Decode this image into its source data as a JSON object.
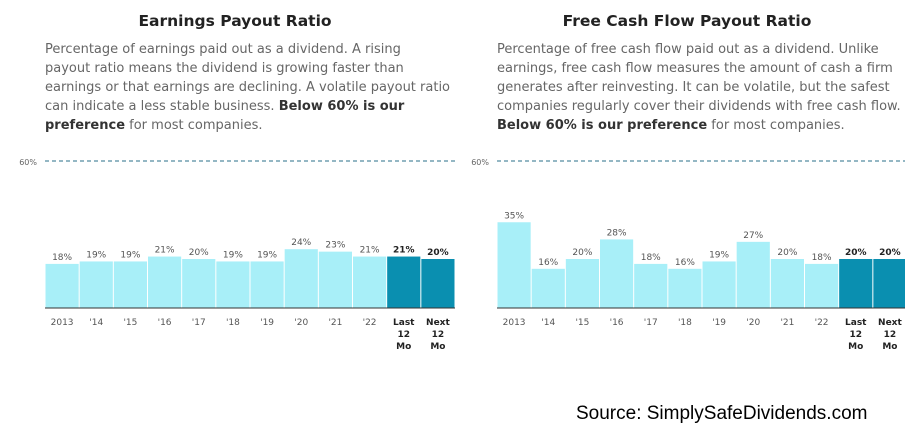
{
  "chart_data": [
    {
      "type": "bar",
      "title": "Earnings Payout Ratio",
      "description": {
        "text": "Percentage of earnings paid out as a dividend. A rising payout ratio means the dividend is growing faster than earnings or that earnings are declining. A volatile payout ratio can indicate a less stable business.",
        "bold": "Below 60% is our preference",
        "tail": "for most companies."
      },
      "categories": [
        "2013",
        "'14",
        "'15",
        "'16",
        "'17",
        "'18",
        "'19",
        "'20",
        "'21",
        "'22",
        "Last 12 Mo",
        "Next 12 Mo"
      ],
      "values": [
        18,
        19,
        19,
        21,
        20,
        19,
        19,
        24,
        23,
        21,
        21,
        20
      ],
      "value_labels": [
        "18%",
        "19%",
        "19%",
        "21%",
        "20%",
        "19%",
        "19%",
        "24%",
        "23%",
        "21%",
        "21%",
        "20%"
      ],
      "highlighted": [
        false,
        false,
        false,
        false,
        false,
        false,
        false,
        false,
        false,
        false,
        true,
        true
      ],
      "reference_line": {
        "value": 60,
        "label": "60%"
      },
      "ylim": [
        0,
        60
      ],
      "grid": false,
      "colors": {
        "bar": "#a8eff8",
        "highlight": "#0a8fb0",
        "reference": "#2a6f8a"
      }
    },
    {
      "type": "bar",
      "title": "Free Cash Flow Payout Ratio",
      "description": {
        "text": "Percentage of free cash flow paid out as a dividend. Unlike earnings, free cash flow measures the amount of cash a firm generates after reinvesting. It can be volatile, but the safest companies regularly cover their dividends with free cash flow.",
        "bold": "Below 60% is our preference",
        "tail": "for most companies."
      },
      "categories": [
        "2013",
        "'14",
        "'15",
        "'16",
        "'17",
        "'18",
        "'19",
        "'20",
        "'21",
        "'22",
        "Last 12 Mo",
        "Next 12 Mo"
      ],
      "values": [
        35,
        16,
        20,
        28,
        18,
        16,
        19,
        27,
        20,
        18,
        20,
        20
      ],
      "value_labels": [
        "35%",
        "16%",
        "20%",
        "28%",
        "18%",
        "16%",
        "19%",
        "27%",
        "20%",
        "18%",
        "20%",
        "20%"
      ],
      "highlighted": [
        false,
        false,
        false,
        false,
        false,
        false,
        false,
        false,
        false,
        false,
        true,
        true
      ],
      "reference_line": {
        "value": 60,
        "label": "60%"
      },
      "ylim": [
        0,
        60
      ],
      "grid": false,
      "colors": {
        "bar": "#a8eff8",
        "highlight": "#0a8fb0",
        "reference": "#2a6f8a"
      }
    }
  ],
  "source": "Source: SimplySafeDividends.com"
}
